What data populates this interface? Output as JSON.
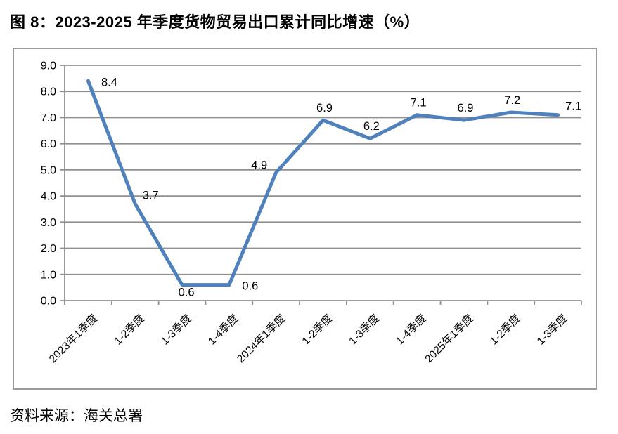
{
  "page": {
    "title": "图 8：2023-2025 年季度货物贸易出口累计同比增速（%）",
    "source": "资料来源：海关总署"
  },
  "chart_data": {
    "type": "line",
    "title": "图 8：2023-2025 年季度货物贸易出口累计同比增速（%）",
    "categories": [
      "2023年1季度",
      "1-2季度",
      "1-3季度",
      "1-4季度",
      "2024年1季度",
      "1-2季度",
      "1-3季度",
      "1-4季度",
      "2025年1季度",
      "1-2季度",
      "1-3季度"
    ],
    "values": [
      8.4,
      3.7,
      0.6,
      0.6,
      4.9,
      6.9,
      6.2,
      7.1,
      6.9,
      7.2,
      7.1
    ],
    "data_labels": [
      "8.4",
      "3.7",
      "0.6",
      "0.6",
      "4.9",
      "6.9",
      "6.2",
      "7.1",
      "6.9",
      "7.2",
      "7.1"
    ],
    "xlabel": "",
    "ylabel": "",
    "ylim": [
      0,
      9
    ],
    "ytick_step": 1,
    "ytick_labels": [
      "0.0",
      "1.0",
      "2.0",
      "3.0",
      "4.0",
      "5.0",
      "6.0",
      "7.0",
      "8.0",
      "9.0"
    ],
    "grid": "horizontal",
    "legend": "none",
    "line_color": "#4F81BD",
    "grid_color": "#909090",
    "axis_color": "#909090",
    "text_color": "#000000",
    "label_positions": [
      "right",
      "above-right",
      "below",
      "right",
      "above-left",
      "above",
      "above",
      "above",
      "above",
      "above",
      "above-right"
    ],
    "source": "资料来源：海关总署"
  }
}
